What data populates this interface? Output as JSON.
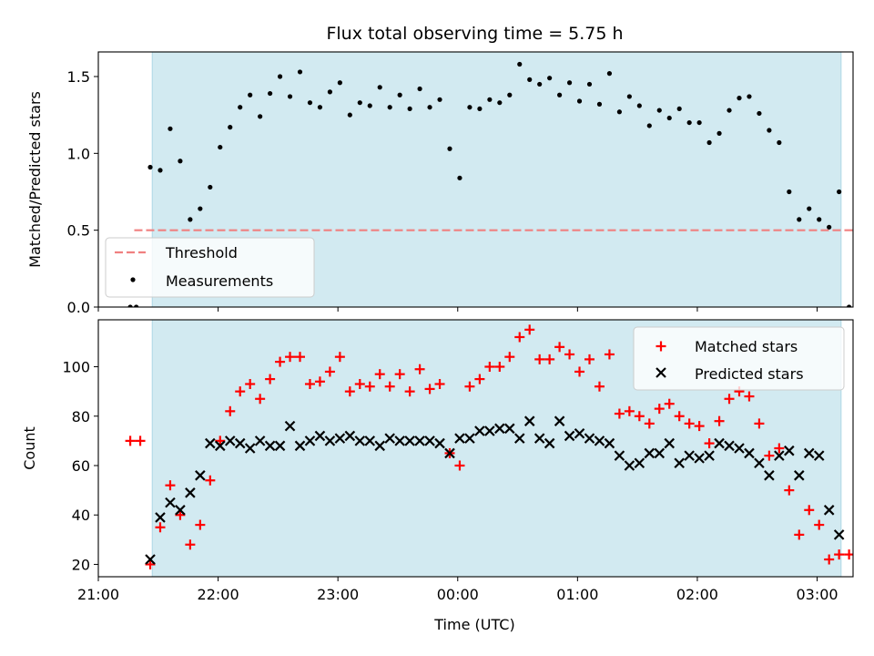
{
  "figure": {
    "title": "Flux total observing time = 5.75 h",
    "xlabel": "Time (UTC)"
  },
  "colors": {
    "span": "#add8e6",
    "threshold": "#f08080",
    "measurements": "#000000",
    "matched": "#ff0000",
    "predicted": "#000000"
  },
  "chart_data": [
    {
      "type": "scatter",
      "panel": "top",
      "ylabel": "Matched/Predicted stars",
      "xlim": [
        "21:00",
        "03:18"
      ],
      "ylim": [
        0,
        1.66
      ],
      "yticks": [
        "0.0",
        "0.5",
        "1.0",
        "1.5"
      ],
      "xticks": [],
      "shaded_span": [
        "21:27",
        "03:12"
      ],
      "grid": false,
      "legend_position": "lower left",
      "threshold": {
        "name": "Threshold",
        "value": 0.5,
        "x_range": [
          "21:18",
          "03:20"
        ],
        "style": "dashed"
      },
      "series": [
        {
          "name": "Measurements",
          "marker": "dot",
          "points": [
            [
              "21:16",
              0.0
            ],
            [
              "21:19",
              0.0
            ],
            [
              "21:26",
              0.91
            ],
            [
              "21:31",
              0.89
            ],
            [
              "21:36",
              1.16
            ],
            [
              "21:41",
              0.95
            ],
            [
              "21:46",
              0.57
            ],
            [
              "21:51",
              0.64
            ],
            [
              "21:56",
              0.78
            ],
            [
              "22:01",
              1.04
            ],
            [
              "22:06",
              1.17
            ],
            [
              "22:11",
              1.3
            ],
            [
              "22:16",
              1.38
            ],
            [
              "22:21",
              1.24
            ],
            [
              "22:26",
              1.39
            ],
            [
              "22:31",
              1.5
            ],
            [
              "22:36",
              1.37
            ],
            [
              "22:41",
              1.53
            ],
            [
              "22:46",
              1.33
            ],
            [
              "22:51",
              1.3
            ],
            [
              "22:56",
              1.4
            ],
            [
              "23:01",
              1.46
            ],
            [
              "23:06",
              1.25
            ],
            [
              "23:11",
              1.33
            ],
            [
              "23:16",
              1.31
            ],
            [
              "23:21",
              1.43
            ],
            [
              "23:26",
              1.3
            ],
            [
              "23:31",
              1.38
            ],
            [
              "23:36",
              1.29
            ],
            [
              "23:41",
              1.42
            ],
            [
              "23:46",
              1.3
            ],
            [
              "23:51",
              1.35
            ],
            [
              "23:56",
              1.03
            ],
            [
              "00:01",
              0.84
            ],
            [
              "00:06",
              1.3
            ],
            [
              "00:11",
              1.29
            ],
            [
              "00:16",
              1.35
            ],
            [
              "00:21",
              1.33
            ],
            [
              "00:26",
              1.38
            ],
            [
              "00:31",
              1.58
            ],
            [
              "00:36",
              1.48
            ],
            [
              "00:41",
              1.45
            ],
            [
              "00:46",
              1.49
            ],
            [
              "00:51",
              1.38
            ],
            [
              "00:56",
              1.46
            ],
            [
              "01:01",
              1.34
            ],
            [
              "01:06",
              1.45
            ],
            [
              "01:11",
              1.32
            ],
            [
              "01:16",
              1.52
            ],
            [
              "01:21",
              1.27
            ],
            [
              "01:26",
              1.37
            ],
            [
              "01:31",
              1.31
            ],
            [
              "01:36",
              1.18
            ],
            [
              "01:41",
              1.28
            ],
            [
              "01:46",
              1.23
            ],
            [
              "01:51",
              1.29
            ],
            [
              "01:56",
              1.2
            ],
            [
              "02:01",
              1.2
            ],
            [
              "02:06",
              1.07
            ],
            [
              "02:11",
              1.13
            ],
            [
              "02:16",
              1.28
            ],
            [
              "02:21",
              1.36
            ],
            [
              "02:26",
              1.37
            ],
            [
              "02:31",
              1.26
            ],
            [
              "02:36",
              1.15
            ],
            [
              "02:41",
              1.07
            ],
            [
              "02:46",
              0.75
            ],
            [
              "02:51",
              0.57
            ],
            [
              "02:56",
              0.64
            ],
            [
              "03:01",
              0.57
            ],
            [
              "03:06",
              0.52
            ],
            [
              "03:11",
              0.75
            ],
            [
              "03:16",
              0.0
            ]
          ]
        }
      ]
    },
    {
      "type": "scatter",
      "panel": "bottom",
      "ylabel": "Count",
      "xlim": [
        "21:00",
        "03:18"
      ],
      "ylim": [
        15,
        119
      ],
      "yticks": [
        "20",
        "40",
        "60",
        "80",
        "100"
      ],
      "xticks": [
        "21:00",
        "22:00",
        "23:00",
        "00:00",
        "01:00",
        "02:00",
        "03:00"
      ],
      "shaded_span": [
        "21:27",
        "03:12"
      ],
      "grid": false,
      "legend_position": "upper right",
      "series": [
        {
          "name": "Matched stars",
          "marker": "plus",
          "points": [
            [
              "21:16",
              70
            ],
            [
              "21:21",
              70
            ],
            [
              "21:26",
              20
            ],
            [
              "21:31",
              35
            ],
            [
              "21:36",
              52
            ],
            [
              "21:41",
              40
            ],
            [
              "21:46",
              28
            ],
            [
              "21:51",
              36
            ],
            [
              "21:56",
              54
            ],
            [
              "22:01",
              70
            ],
            [
              "22:06",
              82
            ],
            [
              "22:11",
              90
            ],
            [
              "22:16",
              93
            ],
            [
              "22:21",
              87
            ],
            [
              "22:26",
              95
            ],
            [
              "22:31",
              102
            ],
            [
              "22:36",
              104
            ],
            [
              "22:41",
              104
            ],
            [
              "22:46",
              93
            ],
            [
              "22:51",
              94
            ],
            [
              "22:56",
              98
            ],
            [
              "23:01",
              104
            ],
            [
              "23:06",
              90
            ],
            [
              "23:11",
              93
            ],
            [
              "23:16",
              92
            ],
            [
              "23:21",
              97
            ],
            [
              "23:26",
              92
            ],
            [
              "23:31",
              97
            ],
            [
              "23:36",
              90
            ],
            [
              "23:41",
              99
            ],
            [
              "23:46",
              91
            ],
            [
              "23:51",
              93
            ],
            [
              "23:56",
              65
            ],
            [
              "00:01",
              60
            ],
            [
              "00:06",
              92
            ],
            [
              "00:11",
              95
            ],
            [
              "00:16",
              100
            ],
            [
              "00:21",
              100
            ],
            [
              "00:26",
              104
            ],
            [
              "00:31",
              112
            ],
            [
              "00:36",
              115
            ],
            [
              "00:41",
              103
            ],
            [
              "00:46",
              103
            ],
            [
              "00:51",
              108
            ],
            [
              "00:56",
              105
            ],
            [
              "01:01",
              98
            ],
            [
              "01:06",
              103
            ],
            [
              "01:11",
              92
            ],
            [
              "01:16",
              105
            ],
            [
              "01:21",
              81
            ],
            [
              "01:26",
              82
            ],
            [
              "01:31",
              80
            ],
            [
              "01:36",
              77
            ],
            [
              "01:41",
              83
            ],
            [
              "01:46",
              85
            ],
            [
              "01:51",
              80
            ],
            [
              "01:56",
              77
            ],
            [
              "02:01",
              76
            ],
            [
              "02:06",
              69
            ],
            [
              "02:11",
              78
            ],
            [
              "02:16",
              87
            ],
            [
              "02:21",
              90
            ],
            [
              "02:26",
              88
            ],
            [
              "02:31",
              77
            ],
            [
              "02:36",
              64
            ],
            [
              "02:41",
              67
            ],
            [
              "02:46",
              50
            ],
            [
              "02:51",
              32
            ],
            [
              "02:56",
              42
            ],
            [
              "03:01",
              36
            ],
            [
              "03:06",
              22
            ],
            [
              "03:11",
              24
            ],
            [
              "03:16",
              24
            ]
          ]
        },
        {
          "name": "Predicted stars",
          "marker": "x",
          "points": [
            [
              "21:26",
              22
            ],
            [
              "21:31",
              39
            ],
            [
              "21:36",
              45
            ],
            [
              "21:41",
              42
            ],
            [
              "21:46",
              49
            ],
            [
              "21:51",
              56
            ],
            [
              "21:56",
              69
            ],
            [
              "22:01",
              68
            ],
            [
              "22:06",
              70
            ],
            [
              "22:11",
              69
            ],
            [
              "22:16",
              67
            ],
            [
              "22:21",
              70
            ],
            [
              "22:26",
              68
            ],
            [
              "22:31",
              68
            ],
            [
              "22:36",
              76
            ],
            [
              "22:41",
              68
            ],
            [
              "22:46",
              70
            ],
            [
              "22:51",
              72
            ],
            [
              "22:56",
              70
            ],
            [
              "23:01",
              71
            ],
            [
              "23:06",
              72
            ],
            [
              "23:11",
              70
            ],
            [
              "23:16",
              70
            ],
            [
              "23:21",
              68
            ],
            [
              "23:26",
              71
            ],
            [
              "23:31",
              70
            ],
            [
              "23:36",
              70
            ],
            [
              "23:41",
              70
            ],
            [
              "23:46",
              70
            ],
            [
              "23:51",
              69
            ],
            [
              "23:56",
              65
            ],
            [
              "00:01",
              71
            ],
            [
              "00:06",
              71
            ],
            [
              "00:11",
              74
            ],
            [
              "00:16",
              74
            ],
            [
              "00:21",
              75
            ],
            [
              "00:26",
              75
            ],
            [
              "00:31",
              71
            ],
            [
              "00:36",
              78
            ],
            [
              "00:41",
              71
            ],
            [
              "00:46",
              69
            ],
            [
              "00:51",
              78
            ],
            [
              "00:56",
              72
            ],
            [
              "01:01",
              73
            ],
            [
              "01:06",
              71
            ],
            [
              "01:11",
              70
            ],
            [
              "01:16",
              69
            ],
            [
              "01:21",
              64
            ],
            [
              "01:26",
              60
            ],
            [
              "01:31",
              61
            ],
            [
              "01:36",
              65
            ],
            [
              "01:41",
              65
            ],
            [
              "01:46",
              69
            ],
            [
              "01:51",
              61
            ],
            [
              "01:56",
              64
            ],
            [
              "02:01",
              63
            ],
            [
              "02:06",
              64
            ],
            [
              "02:11",
              69
            ],
            [
              "02:16",
              68
            ],
            [
              "02:21",
              67
            ],
            [
              "02:26",
              65
            ],
            [
              "02:31",
              61
            ],
            [
              "02:36",
              56
            ],
            [
              "02:41",
              64
            ],
            [
              "02:46",
              66
            ],
            [
              "02:51",
              56
            ],
            [
              "02:56",
              65
            ],
            [
              "03:01",
              64
            ],
            [
              "03:06",
              42
            ],
            [
              "03:11",
              32
            ]
          ]
        }
      ]
    }
  ]
}
